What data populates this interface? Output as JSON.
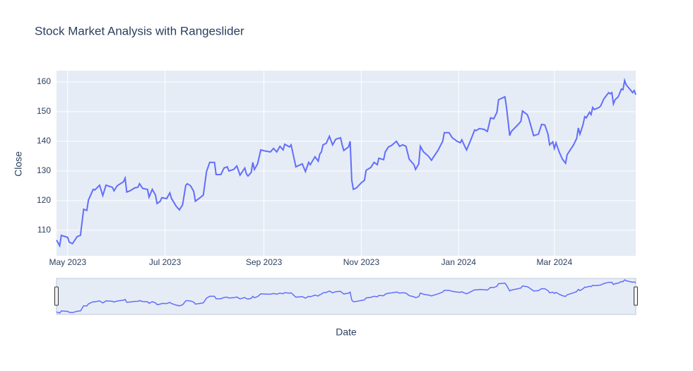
{
  "chart_data": {
    "type": "line",
    "title": "Stock Market Analysis with Rangeslider",
    "x_label": "Date",
    "y_label": "Close",
    "xlim": [
      "2023-04-24",
      "2024-04-21"
    ],
    "ylim": [
      101.4,
      163.8
    ],
    "yticks": [
      110,
      120,
      130,
      140,
      150,
      160
    ],
    "xticks": [
      {
        "value": "2023-05-01",
        "label": "May 2023"
      },
      {
        "value": "2023-07-01",
        "label": "Jul 2023"
      },
      {
        "value": "2023-09-01",
        "label": "Sep 2023"
      },
      {
        "value": "2023-11-01",
        "label": "Nov 2023"
      },
      {
        "value": "2024-01-01",
        "label": "Jan 2024"
      },
      {
        "value": "2024-03-01",
        "label": "Mar 2024"
      }
    ],
    "grid": true,
    "rangeslider": true,
    "x": [
      "2023-04-24",
      "2023-04-26",
      "2023-04-27",
      "2023-05-01",
      "2023-05-02",
      "2023-05-04",
      "2023-05-07",
      "2023-05-09",
      "2023-05-11",
      "2023-05-13",
      "2023-05-14",
      "2023-05-17",
      "2023-05-18",
      "2023-05-21",
      "2023-05-23",
      "2023-05-25",
      "2023-05-29",
      "2023-05-30",
      "2023-06-01",
      "2023-06-05",
      "2023-06-06",
      "2023-06-07",
      "2023-06-09",
      "2023-06-12",
      "2023-06-14",
      "2023-06-15",
      "2023-06-17",
      "2023-06-20",
      "2023-06-21",
      "2023-06-23",
      "2023-06-25",
      "2023-06-26",
      "2023-06-28",
      "2023-06-29",
      "2023-07-02",
      "2023-07-04",
      "2023-07-05",
      "2023-07-08",
      "2023-07-10",
      "2023-07-12",
      "2023-07-14",
      "2023-07-15",
      "2023-07-17",
      "2023-07-19",
      "2023-07-20",
      "2023-07-23",
      "2023-07-25",
      "2023-07-27",
      "2023-07-29",
      "2023-08-01",
      "2023-08-02",
      "2023-08-05",
      "2023-08-07",
      "2023-08-09",
      "2023-08-10",
      "2023-08-13",
      "2023-08-15",
      "2023-08-17",
      "2023-08-20",
      "2023-08-21",
      "2023-08-22",
      "2023-08-24",
      "2023-08-25",
      "2023-08-26",
      "2023-08-28",
      "2023-08-30",
      "2023-09-02",
      "2023-09-05",
      "2023-09-07",
      "2023-09-09",
      "2023-09-11",
      "2023-09-13",
      "2023-09-14",
      "2023-09-17",
      "2023-09-18",
      "2023-09-21",
      "2023-09-25",
      "2023-09-27",
      "2023-09-29",
      "2023-09-30",
      "2023-10-03",
      "2023-10-05",
      "2023-10-06",
      "2023-10-07",
      "2023-10-08",
      "2023-10-10",
      "2023-10-12",
      "2023-10-14",
      "2023-10-16",
      "2023-10-19",
      "2023-10-20",
      "2023-10-21",
      "2023-10-24",
      "2023-10-25",
      "2023-10-26",
      "2023-10-27",
      "2023-10-29",
      "2023-11-01",
      "2023-11-03",
      "2023-11-04",
      "2023-11-07",
      "2023-11-09",
      "2023-11-11",
      "2023-11-12",
      "2023-11-15",
      "2023-11-16",
      "2023-11-18",
      "2023-11-20",
      "2023-11-23",
      "2023-11-25",
      "2023-11-27",
      "2023-11-29",
      "2023-12-01",
      "2023-12-04",
      "2023-12-05",
      "2023-12-07",
      "2023-12-08",
      "2023-12-10",
      "2023-12-13",
      "2023-12-15",
      "2023-12-16",
      "2023-12-19",
      "2023-12-22",
      "2023-12-23",
      "2023-12-26",
      "2023-12-28",
      "2023-12-31",
      "2024-01-02",
      "2024-01-03",
      "2024-01-05",
      "2024-01-06",
      "2024-01-09",
      "2024-01-11",
      "2024-01-12",
      "2024-01-14",
      "2024-01-17",
      "2024-01-19",
      "2024-01-21",
      "2024-01-23",
      "2024-01-25",
      "2024-01-26",
      "2024-01-30",
      "2024-01-31",
      "2024-02-02",
      "2024-02-03",
      "2024-02-07",
      "2024-02-09",
      "2024-02-10",
      "2024-02-13",
      "2024-02-14",
      "2024-02-17",
      "2024-02-20",
      "2024-02-22",
      "2024-02-24",
      "2024-02-26",
      "2024-02-27",
      "2024-02-29",
      "2024-03-01",
      "2024-03-02",
      "2024-03-04",
      "2024-03-06",
      "2024-03-08",
      "2024-03-09",
      "2024-03-13",
      "2024-03-15",
      "2024-03-16",
      "2024-03-17",
      "2024-03-19",
      "2024-03-20",
      "2024-03-21",
      "2024-03-23",
      "2024-03-24",
      "2024-03-25",
      "2024-03-26",
      "2024-03-29",
      "2024-03-30",
      "2024-04-01",
      "2024-04-04",
      "2024-04-05",
      "2024-04-06",
      "2024-04-07",
      "2024-04-08",
      "2024-04-10",
      "2024-04-12",
      "2024-04-13",
      "2024-04-14",
      "2024-04-15",
      "2024-04-18",
      "2024-04-19",
      "2024-04-20",
      "2024-04-21"
    ],
    "series": [
      {
        "name": "Close",
        "color": "#636efa",
        "values": [
          106.7,
          104.8,
          108.3,
          107.6,
          106.0,
          105.5,
          107.9,
          108.3,
          117.1,
          116.7,
          120.2,
          123.8,
          123.6,
          125.2,
          121.7,
          125.2,
          124.5,
          123.3,
          125.0,
          126.4,
          127.6,
          122.9,
          123.3,
          124.3,
          124.5,
          125.7,
          124.1,
          123.8,
          121.2,
          123.8,
          121.9,
          119.0,
          119.8,
          121.0,
          120.7,
          122.6,
          120.8,
          118.1,
          116.9,
          118.6,
          125.2,
          125.7,
          125.0,
          123.1,
          119.8,
          121.0,
          121.9,
          129.8,
          132.9,
          132.9,
          128.8,
          128.8,
          131.0,
          131.4,
          130.0,
          130.5,
          131.7,
          128.6,
          131.0,
          129.0,
          128.3,
          129.5,
          132.9,
          130.5,
          132.4,
          137.1,
          136.7,
          136.4,
          137.6,
          136.4,
          138.3,
          137.1,
          139.0,
          138.1,
          138.8,
          131.4,
          132.4,
          129.8,
          132.9,
          132.1,
          134.8,
          133.3,
          135.7,
          136.4,
          138.8,
          139.3,
          141.7,
          138.8,
          140.7,
          141.2,
          138.8,
          136.9,
          138.1,
          140.0,
          126.9,
          123.8,
          124.3,
          126.0,
          126.9,
          130.2,
          131.2,
          132.9,
          132.1,
          134.3,
          133.8,
          136.4,
          138.1,
          138.6,
          140.0,
          138.3,
          138.8,
          138.3,
          134.0,
          132.1,
          130.5,
          132.4,
          138.3,
          136.4,
          135.0,
          133.6,
          134.5,
          136.9,
          140.0,
          142.9,
          142.9,
          141.2,
          140.0,
          139.5,
          140.5,
          138.1,
          137.1,
          141.0,
          143.8,
          143.6,
          144.3,
          144.0,
          143.3,
          147.9,
          147.6,
          149.8,
          154.0,
          155.0,
          151.4,
          141.9,
          143.3,
          145.5,
          146.7,
          150.2,
          149.0,
          147.6,
          141.9,
          142.4,
          145.7,
          145.5,
          142.4,
          138.8,
          139.8,
          137.6,
          139.5,
          136.4,
          134.0,
          132.6,
          135.5,
          138.8,
          141.0,
          144.5,
          142.4,
          145.7,
          148.3,
          147.9,
          149.8,
          149.0,
          151.4,
          150.7,
          151.4,
          151.9,
          154.3,
          156.4,
          156.0,
          156.4,
          152.6,
          154.0,
          155.0,
          157.6,
          157.4,
          160.5,
          159.0,
          157.1,
          156.4,
          157.1,
          155.7
        ]
      }
    ]
  }
}
